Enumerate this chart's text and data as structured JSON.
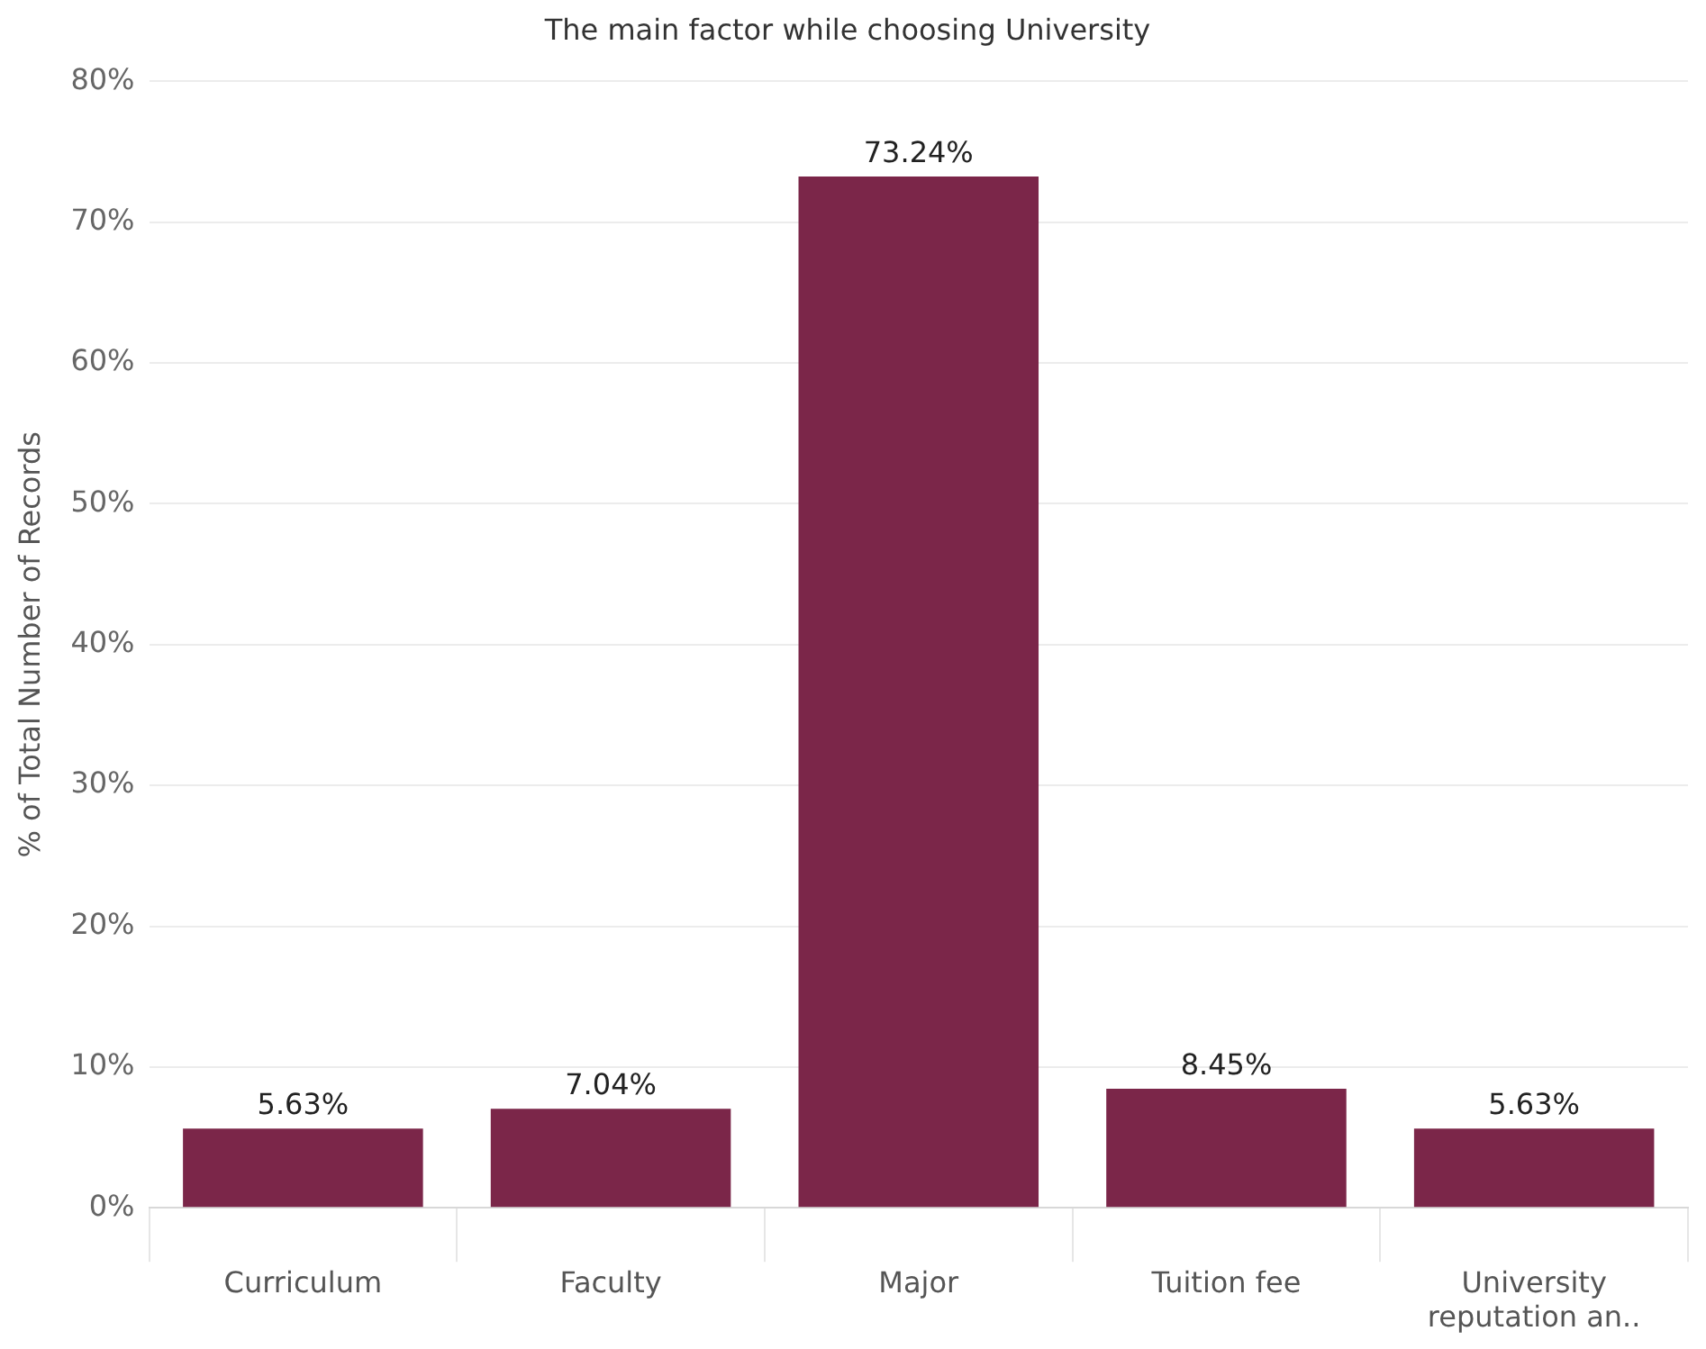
{
  "chart_data": {
    "type": "bar",
    "title": "The main factor while choosing University",
    "ylabel": "% of Total Number of Records",
    "categories": [
      "Curriculum",
      "Faculty",
      "Major",
      "Tuition fee",
      "University reputation an.."
    ],
    "values": [
      5.63,
      7.04,
      73.24,
      8.45,
      5.63
    ],
    "value_labels": [
      "5.63%",
      "7.04%",
      "73.24%",
      "8.45%",
      "5.63%"
    ],
    "color": "#7b2649",
    "ylim": [
      0,
      80
    ],
    "yticks": [
      {
        "value": 0,
        "label": "0%"
      },
      {
        "value": 10,
        "label": "10%"
      },
      {
        "value": 20,
        "label": "20%"
      },
      {
        "value": 30,
        "label": "30%"
      },
      {
        "value": 40,
        "label": "40%"
      },
      {
        "value": 50,
        "label": "50%"
      },
      {
        "value": 60,
        "label": "60%"
      },
      {
        "value": 70,
        "label": "70%"
      },
      {
        "value": 80,
        "label": "80%"
      }
    ],
    "grid": "y",
    "legend": false
  }
}
